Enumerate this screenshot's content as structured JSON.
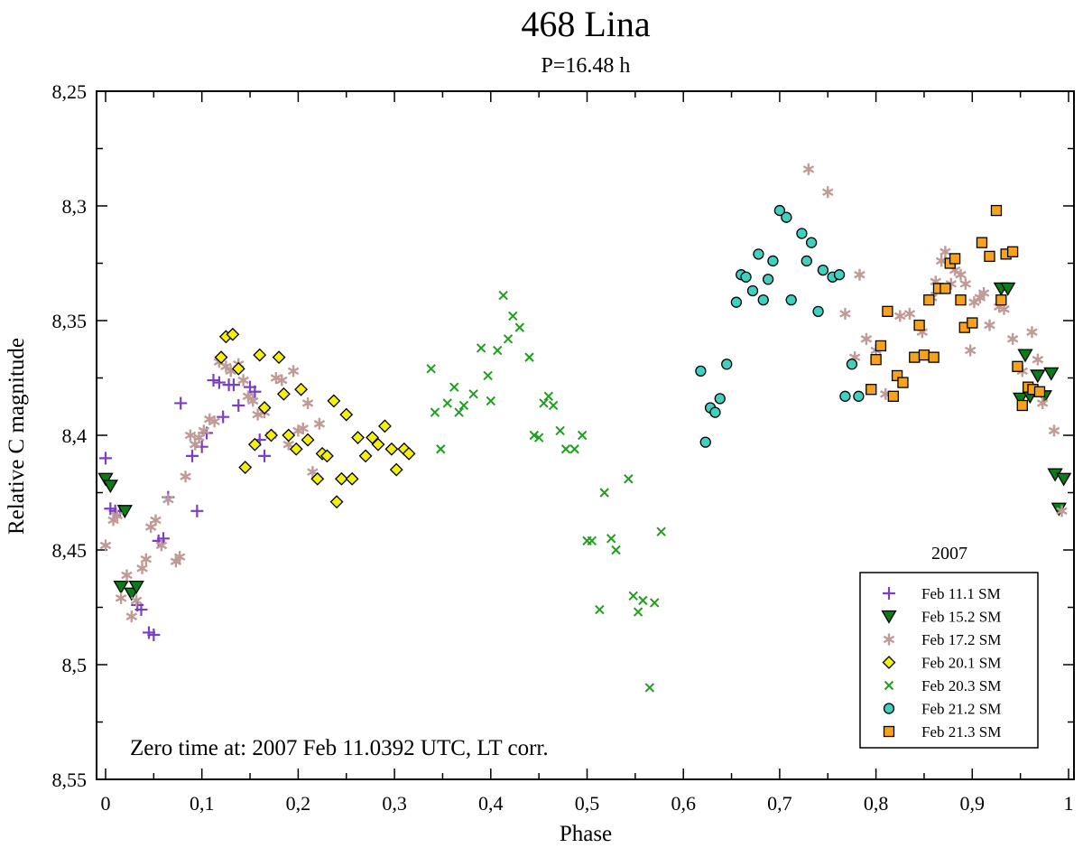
{
  "chart_data": {
    "type": "scatter",
    "title": "468 Lina",
    "subtitle": "P=16.48 h",
    "xlabel": "Phase",
    "ylabel": "Relative C magnitude",
    "xlim": [
      0,
      1
    ],
    "ylim": [
      8.25,
      8.55
    ],
    "y_inverted": true,
    "x_ticks": [
      "0",
      "0,1",
      "0,2",
      "0,3",
      "0,4",
      "0,5",
      "0,6",
      "0,7",
      "0,8",
      "0,9",
      "1"
    ],
    "y_ticks": [
      "8,25",
      "8,3",
      "8,35",
      "8,4",
      "8,45",
      "8,5",
      "8,55"
    ],
    "annotation": "Zero time at: 2007 Feb 11.0392 UTC, LT corr.",
    "legend_title": "2007",
    "legend_position": "bottom-right",
    "grid": false,
    "series": [
      {
        "name": "Feb 11.1 SM",
        "marker": "plus",
        "color": "#7b3fc4",
        "points": [
          [
            0.0,
            8.41
          ],
          [
            0.005,
            8.432
          ],
          [
            0.01,
            8.433
          ],
          [
            0.015,
            8.433
          ],
          [
            0.033,
            8.474
          ],
          [
            0.037,
            8.476
          ],
          [
            0.045,
            8.486
          ],
          [
            0.05,
            8.487
          ],
          [
            0.055,
            8.446
          ],
          [
            0.06,
            8.445
          ],
          [
            0.065,
            8.427
          ],
          [
            0.078,
            8.386
          ],
          [
            0.09,
            8.409
          ],
          [
            0.095,
            8.433
          ],
          [
            0.1,
            8.405
          ],
          [
            0.105,
            8.399
          ],
          [
            0.112,
            8.376
          ],
          [
            0.118,
            8.377
          ],
          [
            0.122,
            8.392
          ],
          [
            0.128,
            8.378
          ],
          [
            0.133,
            8.378
          ],
          [
            0.138,
            8.387
          ],
          [
            0.15,
            8.379
          ],
          [
            0.155,
            8.381
          ],
          [
            0.16,
            8.402
          ],
          [
            0.165,
            8.409
          ]
        ]
      },
      {
        "name": "Feb 15.2 SM",
        "marker": "triangle-down",
        "color": "#0a7d1a",
        "points": [
          [
            0.0,
            8.419
          ],
          [
            0.005,
            8.422
          ],
          [
            0.016,
            8.466
          ],
          [
            0.02,
            8.433
          ],
          [
            0.027,
            8.469
          ],
          [
            0.032,
            8.466
          ],
          [
            0.93,
            8.336
          ],
          [
            0.937,
            8.336
          ],
          [
            0.95,
            8.384
          ],
          [
            0.955,
            8.365
          ],
          [
            0.96,
            8.383
          ],
          [
            0.968,
            8.374
          ],
          [
            0.975,
            8.383
          ],
          [
            0.982,
            8.373
          ],
          [
            0.986,
            8.417
          ],
          [
            0.99,
            8.432
          ],
          [
            0.995,
            8.419
          ]
        ]
      },
      {
        "name": "Feb 17.2 SM",
        "marker": "asterisk",
        "color": "#c09a96",
        "points": [
          [
            0.0,
            8.448
          ],
          [
            0.008,
            8.437
          ],
          [
            0.012,
            8.435
          ],
          [
            0.016,
            8.471
          ],
          [
            0.022,
            8.461
          ],
          [
            0.027,
            8.479
          ],
          [
            0.032,
            8.472
          ],
          [
            0.038,
            8.458
          ],
          [
            0.042,
            8.454
          ],
          [
            0.047,
            8.44
          ],
          [
            0.052,
            8.437
          ],
          [
            0.058,
            8.448
          ],
          [
            0.065,
            8.428
          ],
          [
            0.073,
            8.455
          ],
          [
            0.077,
            8.453
          ],
          [
            0.083,
            8.418
          ],
          [
            0.088,
            8.4
          ],
          [
            0.093,
            8.404
          ],
          [
            0.097,
            8.401
          ],
          [
            0.102,
            8.398
          ],
          [
            0.108,
            8.393
          ],
          [
            0.113,
            8.394
          ],
          [
            0.118,
            8.368
          ],
          [
            0.125,
            8.37
          ],
          [
            0.13,
            8.372
          ],
          [
            0.138,
            8.369
          ],
          [
            0.143,
            8.376
          ],
          [
            0.148,
            8.383
          ],
          [
            0.153,
            8.385
          ],
          [
            0.158,
            8.391
          ],
          [
            0.165,
            8.39
          ],
          [
            0.172,
            8.4
          ],
          [
            0.177,
            8.375
          ],
          [
            0.183,
            8.376
          ],
          [
            0.19,
            8.404
          ],
          [
            0.195,
            8.372
          ],
          [
            0.2,
            8.398
          ],
          [
            0.205,
            8.397
          ],
          [
            0.21,
            8.386
          ],
          [
            0.215,
            8.416
          ],
          [
            0.222,
            8.395
          ],
          [
            0.73,
            8.284
          ],
          [
            0.75,
            8.294
          ],
          [
            0.768,
            8.347
          ],
          [
            0.778,
            8.366
          ],
          [
            0.783,
            8.33
          ],
          [
            0.79,
            8.358
          ],
          [
            0.8,
            8.363
          ],
          [
            0.81,
            8.382
          ],
          [
            0.825,
            8.348
          ],
          [
            0.835,
            8.347
          ],
          [
            0.848,
            8.355
          ],
          [
            0.858,
            8.34
          ],
          [
            0.862,
            8.333
          ],
          [
            0.868,
            8.324
          ],
          [
            0.872,
            8.32
          ],
          [
            0.878,
            8.334
          ],
          [
            0.882,
            8.328
          ],
          [
            0.888,
            8.33
          ],
          [
            0.893,
            8.334
          ],
          [
            0.898,
            8.363
          ],
          [
            0.902,
            8.342
          ],
          [
            0.908,
            8.34
          ],
          [
            0.912,
            8.338
          ],
          [
            0.918,
            8.352
          ],
          [
            0.928,
            8.344
          ],
          [
            0.933,
            8.345
          ],
          [
            0.942,
            8.358
          ],
          [
            0.952,
            8.372
          ],
          [
            0.962,
            8.355
          ],
          [
            0.968,
            8.367
          ],
          [
            0.973,
            8.386
          ],
          [
            0.985,
            8.398
          ],
          [
            0.993,
            8.433
          ]
        ]
      },
      {
        "name": "Feb 20.1 SM",
        "marker": "diamond",
        "color": "#f5f00a",
        "points": [
          [
            0.12,
            8.366
          ],
          [
            0.125,
            8.357
          ],
          [
            0.132,
            8.356
          ],
          [
            0.138,
            8.371
          ],
          [
            0.145,
            8.414
          ],
          [
            0.155,
            8.404
          ],
          [
            0.16,
            8.365
          ],
          [
            0.165,
            8.388
          ],
          [
            0.172,
            8.4
          ],
          [
            0.18,
            8.366
          ],
          [
            0.185,
            8.382
          ],
          [
            0.19,
            8.4
          ],
          [
            0.198,
            8.406
          ],
          [
            0.203,
            8.38
          ],
          [
            0.21,
            8.402
          ],
          [
            0.22,
            8.419
          ],
          [
            0.225,
            8.408
          ],
          [
            0.23,
            8.409
          ],
          [
            0.237,
            8.385
          ],
          [
            0.24,
            8.429
          ],
          [
            0.245,
            8.419
          ],
          [
            0.25,
            8.391
          ],
          [
            0.256,
            8.419
          ],
          [
            0.262,
            8.401
          ],
          [
            0.27,
            8.409
          ],
          [
            0.277,
            8.401
          ],
          [
            0.283,
            8.404
          ],
          [
            0.29,
            8.396
          ],
          [
            0.297,
            8.406
          ],
          [
            0.302,
            8.415
          ],
          [
            0.31,
            8.406
          ],
          [
            0.315,
            8.408
          ]
        ]
      },
      {
        "name": "Feb 20.3 SM",
        "marker": "cross",
        "color": "#1f9e1f",
        "points": [
          [
            0.338,
            8.371
          ],
          [
            0.342,
            8.39
          ],
          [
            0.348,
            8.406
          ],
          [
            0.355,
            8.386
          ],
          [
            0.362,
            8.379
          ],
          [
            0.367,
            8.39
          ],
          [
            0.372,
            8.387
          ],
          [
            0.382,
            8.382
          ],
          [
            0.39,
            8.362
          ],
          [
            0.397,
            8.374
          ],
          [
            0.4,
            8.385
          ],
          [
            0.407,
            8.363
          ],
          [
            0.413,
            8.339
          ],
          [
            0.418,
            8.358
          ],
          [
            0.423,
            8.348
          ],
          [
            0.43,
            8.353
          ],
          [
            0.44,
            8.366
          ],
          [
            0.445,
            8.4
          ],
          [
            0.45,
            8.401
          ],
          [
            0.455,
            8.386
          ],
          [
            0.46,
            8.383
          ],
          [
            0.465,
            8.387
          ],
          [
            0.472,
            8.398
          ],
          [
            0.478,
            8.406
          ],
          [
            0.487,
            8.406
          ],
          [
            0.495,
            8.4
          ],
          [
            0.5,
            8.446
          ],
          [
            0.505,
            8.446
          ],
          [
            0.513,
            8.476
          ],
          [
            0.518,
            8.425
          ],
          [
            0.525,
            8.445
          ],
          [
            0.53,
            8.45
          ],
          [
            0.543,
            8.419
          ],
          [
            0.548,
            8.47
          ],
          [
            0.553,
            8.477
          ],
          [
            0.558,
            8.472
          ],
          [
            0.565,
            8.51
          ],
          [
            0.57,
            8.473
          ],
          [
            0.577,
            8.442
          ]
        ]
      },
      {
        "name": "Feb 21.2 SM",
        "marker": "circle",
        "color": "#40d0c0",
        "points": [
          [
            0.618,
            8.372
          ],
          [
            0.623,
            8.403
          ],
          [
            0.628,
            8.388
          ],
          [
            0.633,
            8.39
          ],
          [
            0.638,
            8.384
          ],
          [
            0.645,
            8.369
          ],
          [
            0.655,
            8.342
          ],
          [
            0.66,
            8.33
          ],
          [
            0.665,
            8.331
          ],
          [
            0.672,
            8.337
          ],
          [
            0.678,
            8.321
          ],
          [
            0.683,
            8.341
          ],
          [
            0.688,
            8.332
          ],
          [
            0.693,
            8.324
          ],
          [
            0.7,
            8.302
          ],
          [
            0.707,
            8.305
          ],
          [
            0.712,
            8.341
          ],
          [
            0.723,
            8.312
          ],
          [
            0.728,
            8.324
          ],
          [
            0.733,
            8.316
          ],
          [
            0.74,
            8.346
          ],
          [
            0.745,
            8.328
          ],
          [
            0.755,
            8.331
          ],
          [
            0.762,
            8.33
          ],
          [
            0.768,
            8.383
          ],
          [
            0.775,
            8.369
          ],
          [
            0.782,
            8.383
          ]
        ]
      },
      {
        "name": "Feb 21.3 SM",
        "marker": "square",
        "color": "#f7a21b",
        "points": [
          [
            0.795,
            8.38
          ],
          [
            0.8,
            8.367
          ],
          [
            0.805,
            8.361
          ],
          [
            0.812,
            8.346
          ],
          [
            0.818,
            8.383
          ],
          [
            0.822,
            8.374
          ],
          [
            0.828,
            8.377
          ],
          [
            0.84,
            8.366
          ],
          [
            0.845,
            8.352
          ],
          [
            0.85,
            8.365
          ],
          [
            0.855,
            8.341
          ],
          [
            0.86,
            8.366
          ],
          [
            0.865,
            8.336
          ],
          [
            0.872,
            8.336
          ],
          [
            0.877,
            8.325
          ],
          [
            0.882,
            8.323
          ],
          [
            0.888,
            8.341
          ],
          [
            0.892,
            8.353
          ],
          [
            0.9,
            8.351
          ],
          [
            0.91,
            8.316
          ],
          [
            0.918,
            8.322
          ],
          [
            0.925,
            8.302
          ],
          [
            0.93,
            8.341
          ],
          [
            0.935,
            8.321
          ],
          [
            0.942,
            8.32
          ],
          [
            0.947,
            8.37
          ],
          [
            0.952,
            8.387
          ],
          [
            0.958,
            8.379
          ],
          [
            0.963,
            8.38
          ],
          [
            0.97,
            8.381
          ]
        ]
      }
    ]
  }
}
